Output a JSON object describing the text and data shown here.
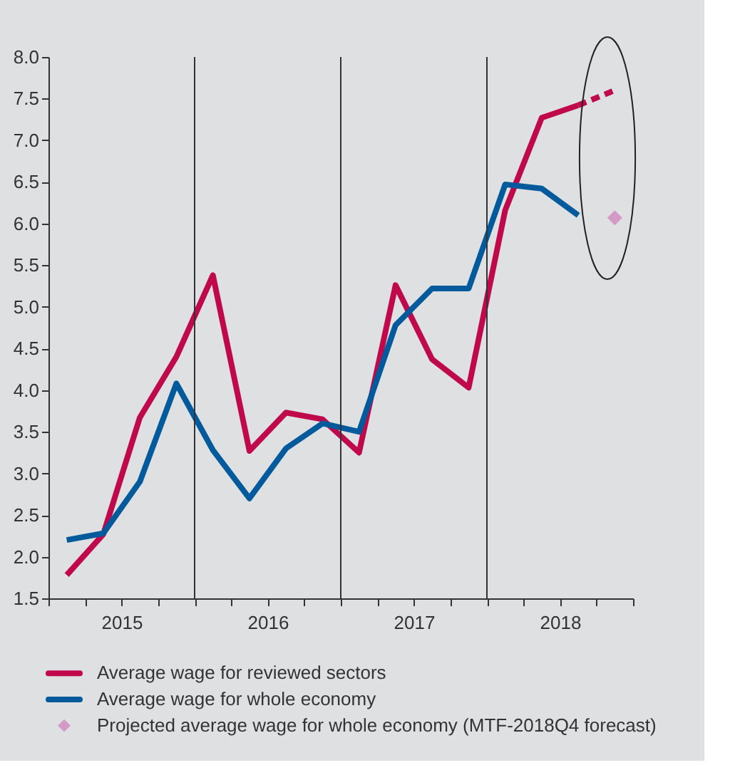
{
  "chart_data": {
    "type": "line",
    "x": [
      2015.125,
      2015.375,
      2015.625,
      2015.875,
      2016.125,
      2016.375,
      2016.625,
      2016.875,
      2017.125,
      2017.375,
      2017.625,
      2017.875,
      2018.125,
      2018.375,
      2018.625,
      2018.875
    ],
    "xlim": [
      2015,
      2019
    ],
    "xticks": [
      {
        "value": 2015,
        "label": null
      },
      {
        "value": 2015.25,
        "label": null
      },
      {
        "value": 2015.5,
        "label": "2015"
      },
      {
        "value": 2015.75,
        "label": null
      },
      {
        "value": 2016,
        "label": null
      },
      {
        "value": 2016.25,
        "label": null
      },
      {
        "value": 2016.5,
        "label": "2016"
      },
      {
        "value": 2016.75,
        "label": null
      },
      {
        "value": 2017,
        "label": null
      },
      {
        "value": 2017.25,
        "label": null
      },
      {
        "value": 2017.5,
        "label": "2017"
      },
      {
        "value": 2017.75,
        "label": null
      },
      {
        "value": 2018,
        "label": null
      },
      {
        "value": 2018.25,
        "label": null
      },
      {
        "value": 2018.5,
        "label": "2018"
      },
      {
        "value": 2018.75,
        "label": null
      },
      {
        "value": 2019,
        "label": null
      }
    ],
    "ylim": [
      1.5,
      8.0
    ],
    "yticks": [
      1.5,
      {
        "value": 2,
        "label": "2.0"
      },
      2.5,
      {
        "value": 3,
        "label": "3.0"
      },
      3.5,
      {
        "value": 4,
        "label": "4.0"
      },
      4.5,
      {
        "value": 5,
        "label": "5.0"
      },
      5.5,
      {
        "value": 6,
        "label": "6.0"
      },
      6.5,
      {
        "value": 7,
        "label": "7.0"
      },
      7.5,
      {
        "value": 8,
        "label": "8.0"
      }
    ],
    "series": [
      {
        "name": "Average wage for reviewed sectors",
        "line_style": "solid",
        "color": "#c0094a",
        "values": [
          1.78,
          2.27,
          3.67,
          4.4,
          5.38,
          3.27,
          3.73,
          3.65,
          3.25,
          5.26,
          4.37,
          4.03,
          6.16,
          7.27,
          7.42,
          null
        ]
      },
      {
        "line_style": "dashed",
        "color": "#c0094a",
        "values": [
          null,
          null,
          null,
          null,
          null,
          null,
          null,
          null,
          null,
          null,
          null,
          null,
          null,
          null,
          7.42,
          7.6
        ]
      },
      {
        "name": "Average wage for whole economy",
        "line_style": "solid",
        "color": "#005a9c",
        "values": [
          2.2,
          2.28,
          2.9,
          4.08,
          3.28,
          2.7,
          3.3,
          3.6,
          3.5,
          4.78,
          5.22,
          5.22,
          6.47,
          6.42,
          6.1,
          null
        ]
      },
      {
        "name": "Projected average wage for whole economy (MTF-2018Q4 forecast)",
        "type": "scatter",
        "marker": "diamond",
        "color": "#d39ac8",
        "values": [
          null,
          null,
          null,
          null,
          null,
          null,
          null,
          null,
          null,
          null,
          null,
          null,
          null,
          null,
          null,
          6.07
        ]
      }
    ],
    "ref_lines": [
      {
        "axis": "x",
        "value": 2016,
        "label": null,
        "color": "#333333"
      },
      {
        "axis": "x",
        "value": 2017,
        "label": null,
        "color": "#333333"
      },
      {
        "axis": "x",
        "value": 2018,
        "label": null,
        "color": "#333333"
      }
    ],
    "legend": "bottom"
  }
}
